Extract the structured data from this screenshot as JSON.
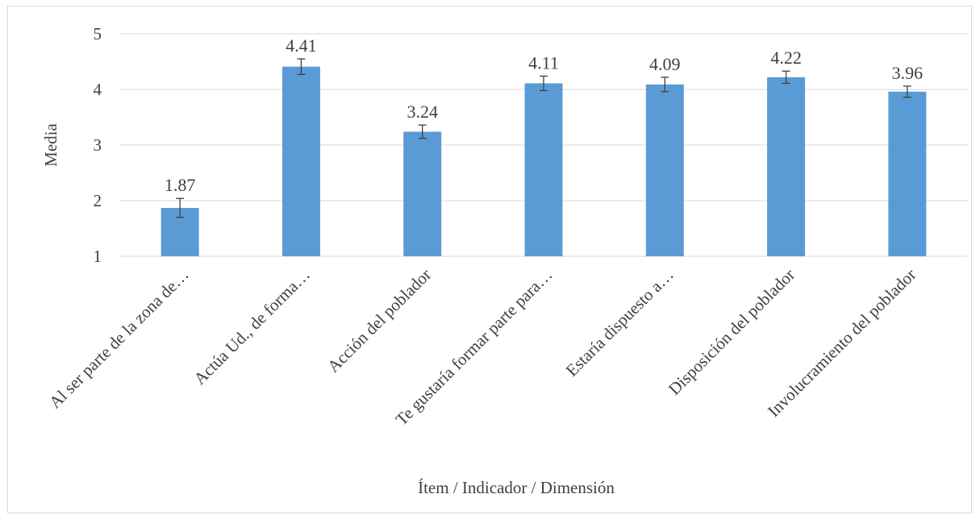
{
  "chart_data": {
    "type": "bar",
    "xlabel": "Ítem / Indicador / Dimensión",
    "ylabel": "Media",
    "ylim": [
      1,
      5
    ],
    "yticks": [
      1,
      2,
      3,
      4,
      5
    ],
    "grid": true,
    "bar_color": "#5b9bd5",
    "categories": [
      "Al ser parte de la zona de…",
      "Actúa Ud., de forma…",
      "Acción del poblador",
      "Te gustaría formar parte para…",
      "Estaría dispuesto a…",
      "Disposición del poblador",
      "Involucramiento del poblador"
    ],
    "values": [
      1.87,
      4.41,
      3.24,
      4.11,
      4.09,
      4.22,
      3.96
    ],
    "value_labels": [
      "1.87",
      "4.41",
      "3.24",
      "4.11",
      "4.09",
      "4.22",
      "3.96"
    ],
    "error_bars": [
      0.17,
      0.14,
      0.12,
      0.13,
      0.13,
      0.11,
      0.1
    ]
  }
}
